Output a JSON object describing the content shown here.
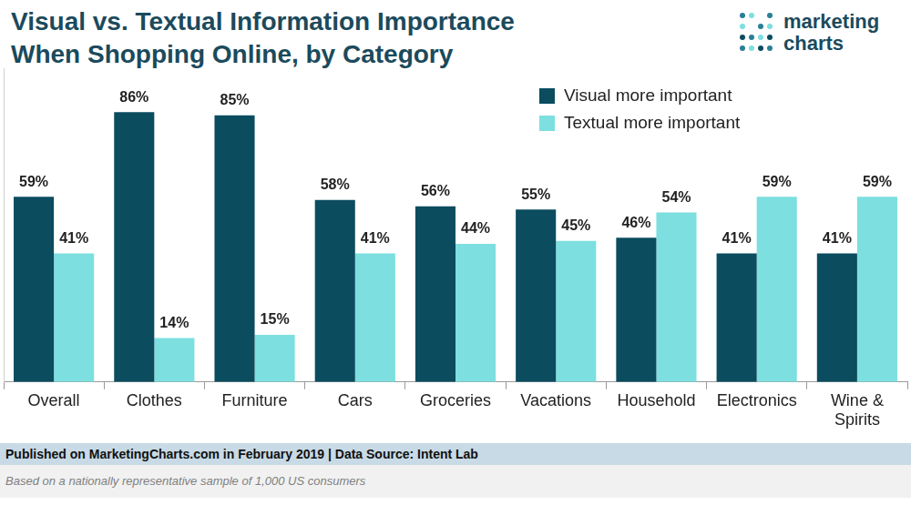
{
  "chart_data": {
    "type": "bar",
    "title": [
      "Visual vs. Textual Information Importance",
      "When Shopping Online, by Category"
    ],
    "categories": [
      "Overall",
      "Clothes",
      "Furniture",
      "Cars",
      "Groceries",
      "Vacations",
      "Household",
      "Electronics",
      "Wine & Spirits"
    ],
    "series": [
      {
        "name": "Visual more important",
        "color": "#0b4c5f",
        "values": [
          59,
          86,
          85,
          58,
          56,
          55,
          46,
          41,
          41
        ],
        "value_labels": [
          "59%",
          "86%",
          "85%",
          "58%",
          "56%",
          "55%",
          "46%",
          "41%",
          "41%"
        ]
      },
      {
        "name": "Textual more important",
        "color": "#7ddfdf",
        "values": [
          41,
          14,
          15,
          41,
          44,
          45,
          54,
          59,
          59
        ],
        "value_labels": [
          "41%",
          "14%",
          "15%",
          "41%",
          "44%",
          "45%",
          "54%",
          "59%",
          "59%"
        ]
      }
    ],
    "ylim": [
      0,
      100
    ],
    "grid": false,
    "tick_labels": "x",
    "legend": "top-right",
    "data_labels": true,
    "source": "Published on MarketingCharts.com in February 2019 | Data Source: Intent Lab",
    "note": "Based on a nationally representative sample of 1,000 US consumers",
    "brand": [
      "marketing",
      "charts"
    ]
  }
}
